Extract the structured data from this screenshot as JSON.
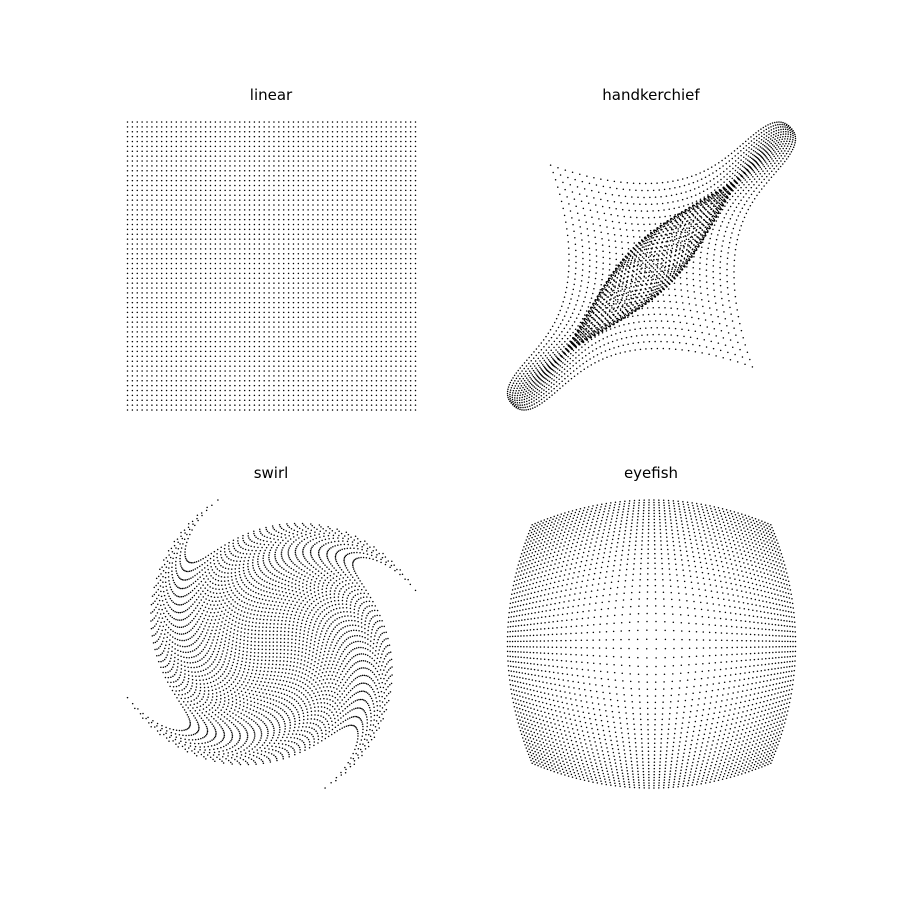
{
  "figure": {
    "background": "#ffffff",
    "marker_color": "#000000"
  },
  "chart_data": [
    {
      "type": "scatter",
      "title": "linear",
      "variation": "linear",
      "grid_points_per_side": 60,
      "x_range": [
        -1,
        1
      ],
      "y_range": [
        -1,
        1
      ],
      "axes_visible": false
    },
    {
      "type": "scatter",
      "title": "handkerchief",
      "variation": "handkerchief",
      "grid_points_per_side": 60,
      "x_range": [
        -1,
        1
      ],
      "y_range": [
        -1,
        1
      ],
      "axes_visible": false
    },
    {
      "type": "scatter",
      "title": "swirl",
      "variation": "swirl",
      "grid_points_per_side": 60,
      "x_range": [
        -1,
        1
      ],
      "y_range": [
        -1,
        1
      ],
      "axes_visible": false
    },
    {
      "type": "scatter",
      "title": "eyefish",
      "variation": "eyefish",
      "grid_points_per_side": 60,
      "x_range": [
        -1,
        1
      ],
      "y_range": [
        -1,
        1
      ],
      "axes_visible": false
    }
  ]
}
